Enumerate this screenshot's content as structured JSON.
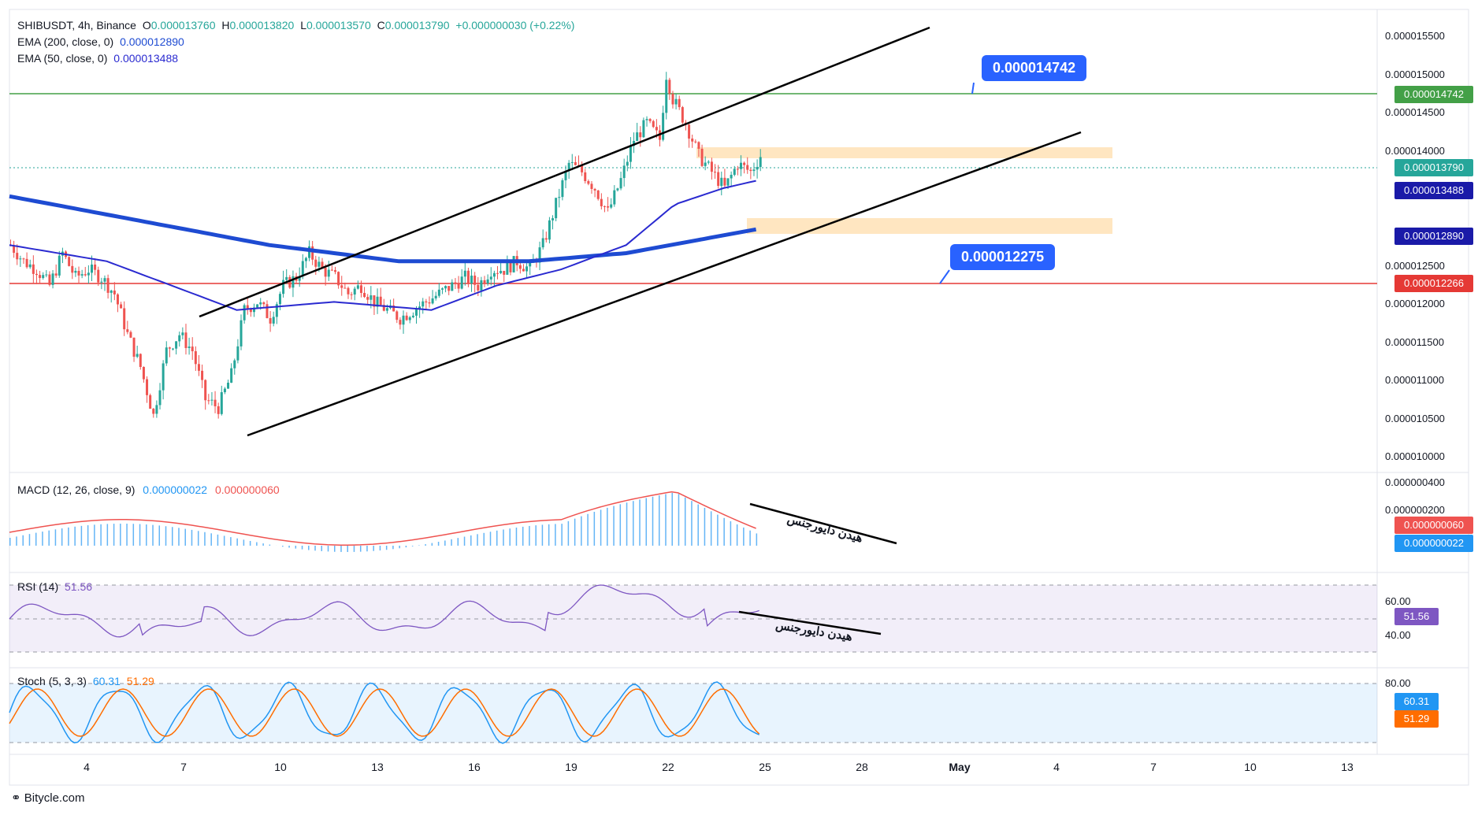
{
  "header": {
    "symbol": "SHIBUSDT, 4h, Binance",
    "ohlc": {
      "o_label": "O",
      "o": "0.000013760",
      "h_label": "H",
      "h": "0.000013820",
      "l_label": "L",
      "l": "0.000013570",
      "c_label": "C",
      "c": "0.000013790",
      "change": "+0.000000030 (+0.22%)"
    },
    "ema200": {
      "label": "EMA (200, close, 0)",
      "value": "0.000012890"
    },
    "ema50": {
      "label": "EMA (50, close, 0)",
      "value": "0.000013488"
    }
  },
  "price_axis": {
    "ticks": [
      "0.000015500",
      "0.000015000",
      "0.000014500",
      "0.000014000",
      "0.000012500",
      "0.000012000",
      "0.000011500",
      "0.000011000",
      "0.000010500",
      "0.000010000"
    ]
  },
  "price_tags": {
    "resistance": "0.000014742",
    "last": "0.000013790",
    "ema50": "0.000013488",
    "ema200": "0.000012890",
    "support": "0.000012266"
  },
  "callouts": {
    "upper": "0.000014742",
    "lower": "0.000012275"
  },
  "macd": {
    "label": "MACD (12, 26, close, 9)",
    "v1": "0.000000022",
    "v2": "0.000000060",
    "tick": "0.000000400",
    "tick2": "0.000000200",
    "annotation": "هیدن دایورجنس"
  },
  "rsi": {
    "label": "RSI (14)",
    "value": "51.56",
    "ticks": [
      "60.00",
      "40.00"
    ],
    "annotation": "هیدن دایورجنس"
  },
  "stoch": {
    "label": "Stoch (5, 3, 3)",
    "k": "60.31",
    "d": "51.29",
    "ticks": [
      "80.00"
    ]
  },
  "date_axis": [
    "4",
    "7",
    "10",
    "13",
    "16",
    "19",
    "22",
    "25",
    "28",
    "May",
    "4",
    "7",
    "10",
    "13"
  ],
  "brand": "Bitycle.com",
  "colors": {
    "up": "#26a69a",
    "down": "#ef5350",
    "ema200": "#1e4bd2",
    "ema50": "#2a2ad0",
    "resistance": "#43a047",
    "support": "#e53935",
    "callout": "#2962ff",
    "rsi": "#7e57c2",
    "stoch_k": "#2196f3",
    "stoch_d": "#ff6d00"
  },
  "chart_data": {
    "type": "candlestick",
    "symbol": "SHIBUSDT",
    "timeframe": "4h",
    "y_range": [
      9.9e-06,
      1.56e-05
    ],
    "x_labels": [
      "4",
      "7",
      "10",
      "13",
      "16",
      "19",
      "22",
      "25",
      "28",
      "May",
      "4",
      "7",
      "10",
      "13"
    ],
    "close_path": [
      [
        0,
        1.27e-05
      ],
      [
        4,
        1.25e-05
      ],
      [
        8,
        1.24e-05
      ],
      [
        12,
        1.22e-05
      ],
      [
        16,
        1.26e-05
      ],
      [
        20,
        1.23e-05
      ],
      [
        24,
        1.24e-05
      ],
      [
        28,
        1.23e-05
      ],
      [
        32,
        1.21e-05
      ],
      [
        36,
        1.16e-05
      ],
      [
        40,
        1.12e-05
      ],
      [
        44,
        1.06e-05
      ],
      [
        48,
        1.14e-05
      ],
      [
        52,
        1.16e-05
      ],
      [
        56,
        1.14e-05
      ],
      [
        60,
        1.08e-05
      ],
      [
        64,
        1.07e-05
      ],
      [
        68,
        1.11e-05
      ],
      [
        72,
        1.19e-05
      ],
      [
        76,
        1.2e-05
      ],
      [
        80,
        1.18e-05
      ],
      [
        84,
        1.22e-05
      ],
      [
        88,
        1.23e-05
      ],
      [
        92,
        1.26e-05
      ],
      [
        96,
        1.24e-05
      ],
      [
        100,
        1.23e-05
      ],
      [
        104,
        1.21e-05
      ],
      [
        108,
        1.22e-05
      ],
      [
        112,
        1.2e-05
      ],
      [
        116,
        1.19e-05
      ],
      [
        120,
        1.18e-05
      ],
      [
        124,
        1.19e-05
      ],
      [
        128,
        1.2e-05
      ],
      [
        132,
        1.21e-05
      ],
      [
        136,
        1.22e-05
      ],
      [
        140,
        1.23e-05
      ],
      [
        144,
        1.22e-05
      ],
      [
        148,
        1.24e-05
      ],
      [
        152,
        1.24e-05
      ],
      [
        156,
        1.25e-05
      ],
      [
        160,
        1.24e-05
      ],
      [
        164,
        1.27e-05
      ],
      [
        168,
        1.32e-05
      ],
      [
        172,
        1.37e-05
      ],
      [
        176,
        1.36e-05
      ],
      [
        180,
        1.34e-05
      ],
      [
        184,
        1.31e-05
      ],
      [
        188,
        1.35e-05
      ],
      [
        192,
        1.4e-05
      ],
      [
        196,
        1.42e-05
      ],
      [
        200,
        1.4e-05
      ],
      [
        202,
        1.48e-05
      ],
      [
        204,
        1.45e-05
      ],
      [
        208,
        1.42e-05
      ],
      [
        212,
        1.38e-05
      ],
      [
        216,
        1.36e-05
      ],
      [
        220,
        1.34e-05
      ],
      [
        224,
        1.37e-05
      ],
      [
        228,
        1.36e-05
      ],
      [
        231,
        1.38e-05
      ]
    ],
    "ema200_path": [
      [
        0,
        1.33e-05
      ],
      [
        40,
        1.3e-05
      ],
      [
        80,
        1.27e-05
      ],
      [
        120,
        1.25e-05
      ],
      [
        160,
        1.25e-05
      ],
      [
        190,
        1.26e-05
      ],
      [
        231,
        1.29e-05
      ]
    ],
    "ema50_path": [
      [
        0,
        1.27e-05
      ],
      [
        30,
        1.25e-05
      ],
      [
        50,
        1.22e-05
      ],
      [
        70,
        1.19e-05
      ],
      [
        100,
        1.2e-05
      ],
      [
        130,
        1.19e-05
      ],
      [
        150,
        1.22e-05
      ],
      [
        170,
        1.24e-05
      ],
      [
        190,
        1.27e-05
      ],
      [
        205,
        1.32e-05
      ],
      [
        220,
        1.34e-05
      ],
      [
        231,
        1.35e-05
      ]
    ],
    "levels": {
      "resistance": 1.4742e-05,
      "support": 1.2266e-05
    },
    "channel_upper": [
      [
        50,
        1.18e-05
      ],
      [
        238,
        1.55e-05
      ]
    ],
    "channel_lower": [
      [
        63,
        1.03e-05
      ],
      [
        276,
        1.42e-05
      ]
    ],
    "zones": [
      {
        "from": 1.39e-05,
        "to": 1.4e-05,
        "x_from": 178,
        "x_to": 285
      },
      {
        "from": 1.29e-05,
        "to": 1.31e-05,
        "x_from": 190,
        "x_to": 285
      }
    ]
  }
}
